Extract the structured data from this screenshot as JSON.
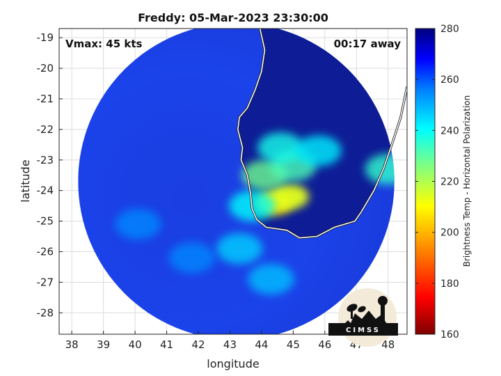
{
  "chart_data": {
    "type": "heatmap",
    "title": "Freddy: 05-Mar-2023 23:30:00",
    "annotations": {
      "vmax": "Vmax: 45 kts",
      "time_offset": "00:17 away"
    },
    "xlabel": "longitude",
    "ylabel": "latitude",
    "xlim": [
      37.6,
      48.6
    ],
    "ylim": [
      -28.7,
      -18.7
    ],
    "x_ticks": [
      38,
      39,
      40,
      41,
      42,
      43,
      44,
      45,
      46,
      47,
      48
    ],
    "y_ticks": [
      -19,
      -20,
      -21,
      -22,
      -23,
      -24,
      -25,
      -26,
      -27,
      -28
    ],
    "grid": true,
    "swath": {
      "center": [
        43.2,
        -23.7
      ],
      "radius_deg": 5.0
    },
    "brightness_features": [
      {
        "lon": 44.4,
        "lat": -24.4,
        "value": 208
      },
      {
        "lon": 44.9,
        "lat": -24.2,
        "value": 214
      },
      {
        "lon": 44.1,
        "lat": -23.5,
        "value": 228
      },
      {
        "lon": 45.0,
        "lat": -23.2,
        "value": 232
      },
      {
        "lon": 44.6,
        "lat": -22.6,
        "value": 238
      },
      {
        "lon": 45.8,
        "lat": -22.7,
        "value": 242
      },
      {
        "lon": 43.7,
        "lat": -24.5,
        "value": 240
      },
      {
        "lon": 43.3,
        "lat": -25.9,
        "value": 246
      },
      {
        "lon": 44.3,
        "lat": -26.9,
        "value": 248
      },
      {
        "lon": 48.0,
        "lat": -23.3,
        "value": 235
      },
      {
        "lon": 40.1,
        "lat": -25.1,
        "value": 255
      },
      {
        "lon": 41.8,
        "lat": -26.2,
        "value": 255
      }
    ],
    "coastline": [
      [
        43.95,
        -18.7
      ],
      [
        44.1,
        -19.4
      ],
      [
        44.0,
        -20.1
      ],
      [
        43.8,
        -20.7
      ],
      [
        43.55,
        -21.3
      ],
      [
        43.3,
        -21.6
      ],
      [
        43.25,
        -22.0
      ],
      [
        43.4,
        -22.6
      ],
      [
        43.35,
        -23.0
      ],
      [
        43.55,
        -23.5
      ],
      [
        43.65,
        -24.1
      ],
      [
        43.7,
        -24.6
      ],
      [
        43.85,
        -24.95
      ],
      [
        44.15,
        -25.2
      ],
      [
        44.8,
        -25.3
      ],
      [
        45.2,
        -25.55
      ],
      [
        45.75,
        -25.5
      ],
      [
        46.3,
        -25.2
      ],
      [
        46.95,
        -25.0
      ],
      [
        47.15,
        -24.7
      ],
      [
        47.55,
        -24.0
      ],
      [
        47.85,
        -23.3
      ],
      [
        48.15,
        -22.4
      ],
      [
        48.4,
        -21.6
      ],
      [
        48.6,
        -20.6
      ]
    ],
    "colorbar": {
      "label": "Brightness Temp - Horizontal Polarization",
      "range": [
        160,
        280
      ],
      "ticks": [
        280,
        260,
        240,
        220,
        200,
        180,
        160
      ]
    }
  },
  "logo": {
    "text": "CIMSS"
  },
  "colors": {
    "swath_base": "#1a3fe0",
    "land_dark": "#0d1a8a",
    "coastline": "#ffffff"
  }
}
